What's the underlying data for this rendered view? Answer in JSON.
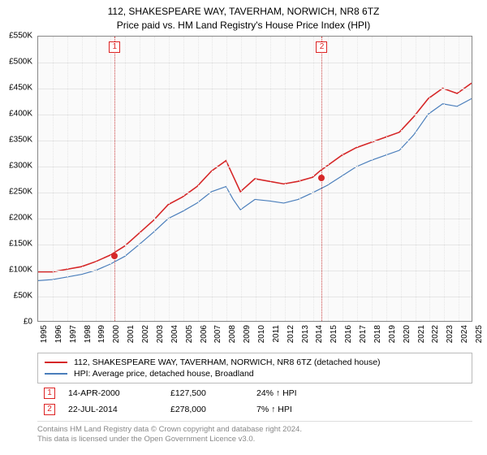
{
  "title": {
    "line1": "112, SHAKESPEARE WAY, TAVERHAM, NORWICH, NR8 6TZ",
    "line2": "Price paid vs. HM Land Registry's House Price Index (HPI)"
  },
  "chart": {
    "type": "line",
    "background_color": "#fafafa",
    "grid_color": "#e6e6e6",
    "border_color": "#888888",
    "ylim": [
      0,
      550
    ],
    "ytick_step": 50,
    "yticks": [
      0,
      50,
      100,
      150,
      200,
      250,
      300,
      350,
      400,
      450,
      500,
      550
    ],
    "ytick_labels": [
      "£0",
      "£50K",
      "£100K",
      "£150K",
      "£200K",
      "£250K",
      "£300K",
      "£350K",
      "£400K",
      "£450K",
      "£500K",
      "£550K"
    ],
    "xlim": [
      1995,
      2025
    ],
    "xticks": [
      1995,
      1996,
      1997,
      1998,
      1999,
      2000,
      2001,
      2002,
      2003,
      2004,
      2005,
      2006,
      2007,
      2008,
      2009,
      2010,
      2011,
      2012,
      2013,
      2014,
      2015,
      2016,
      2017,
      2018,
      2019,
      2020,
      2021,
      2022,
      2023,
      2024,
      2025
    ],
    "series": [
      {
        "name": "property",
        "label": "112, SHAKESPEARE WAY, TAVERHAM, NORWICH, NR8 6TZ (detached house)",
        "color": "#d62728",
        "line_width": 1.6,
        "data": [
          [
            1995,
            95
          ],
          [
            1996,
            95
          ],
          [
            1997,
            100
          ],
          [
            1998,
            105
          ],
          [
            1999,
            115
          ],
          [
            2000,
            127.5
          ],
          [
            2001,
            145
          ],
          [
            2002,
            170
          ],
          [
            2003,
            195
          ],
          [
            2004,
            225
          ],
          [
            2005,
            240
          ],
          [
            2006,
            260
          ],
          [
            2007,
            290
          ],
          [
            2008,
            310
          ],
          [
            2008.5,
            280
          ],
          [
            2009,
            250
          ],
          [
            2010,
            275
          ],
          [
            2011,
            270
          ],
          [
            2012,
            265
          ],
          [
            2013,
            270
          ],
          [
            2014,
            278
          ],
          [
            2014.5,
            290
          ],
          [
            2015,
            300
          ],
          [
            2016,
            320
          ],
          [
            2017,
            335
          ],
          [
            2018,
            345
          ],
          [
            2019,
            355
          ],
          [
            2020,
            365
          ],
          [
            2021,
            395
          ],
          [
            2022,
            430
          ],
          [
            2023,
            450
          ],
          [
            2024,
            440
          ],
          [
            2025,
            460
          ]
        ]
      },
      {
        "name": "hpi",
        "label": "HPI: Average price, detached house, Broadland",
        "color": "#4a7ebb",
        "line_width": 1.2,
        "data": [
          [
            1995,
            78
          ],
          [
            1996,
            80
          ],
          [
            1997,
            85
          ],
          [
            1998,
            90
          ],
          [
            1999,
            98
          ],
          [
            2000,
            110
          ],
          [
            2001,
            125
          ],
          [
            2002,
            148
          ],
          [
            2003,
            172
          ],
          [
            2004,
            198
          ],
          [
            2005,
            212
          ],
          [
            2006,
            228
          ],
          [
            2007,
            250
          ],
          [
            2008,
            260
          ],
          [
            2008.5,
            235
          ],
          [
            2009,
            215
          ],
          [
            2010,
            235
          ],
          [
            2011,
            232
          ],
          [
            2012,
            228
          ],
          [
            2013,
            235
          ],
          [
            2014,
            248
          ],
          [
            2015,
            262
          ],
          [
            2016,
            280
          ],
          [
            2017,
            298
          ],
          [
            2018,
            310
          ],
          [
            2019,
            320
          ],
          [
            2020,
            330
          ],
          [
            2021,
            360
          ],
          [
            2022,
            400
          ],
          [
            2023,
            420
          ],
          [
            2024,
            415
          ],
          [
            2025,
            430
          ]
        ]
      }
    ],
    "markers": [
      {
        "id": "1",
        "x": 2000.28,
        "date": "14-APR-2000",
        "price": "£127,500",
        "hpi_delta": "24% ↑ HPI",
        "y": 127.5,
        "marker_color": "#d62728",
        "line_color": "#cc4444"
      },
      {
        "id": "2",
        "x": 2014.56,
        "date": "22-JUL-2014",
        "price": "£278,000",
        "hpi_delta": "7% ↑ HPI",
        "y": 278,
        "marker_color": "#d62728",
        "line_color": "#cc4444"
      }
    ]
  },
  "legend": {
    "items": [
      {
        "color": "#d62728",
        "label": "112, SHAKESPEARE WAY, TAVERHAM, NORWICH, NR8 6TZ (detached house)"
      },
      {
        "color": "#4a7ebb",
        "label": "HPI: Average price, detached house, Broadland"
      }
    ]
  },
  "footer": {
    "line1": "Contains HM Land Registry data © Crown copyright and database right 2024.",
    "line2": "This data is licensed under the Open Government Licence v3.0."
  },
  "fonts": {
    "title_size": 12,
    "axis_size": 10,
    "legend_size": 10.5,
    "footer_size": 9.5
  }
}
